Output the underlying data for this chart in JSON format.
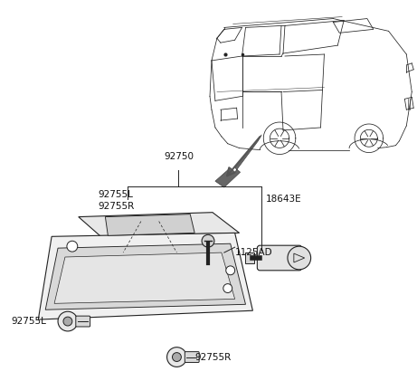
{
  "background_color": "#ffffff",
  "line_color": "#222222",
  "label_92750": "92750",
  "label_92755L_top": "92755L",
  "label_92755R_top": "92755R",
  "label_18643E": "18643E",
  "label_1125AD": "1125AD",
  "label_92755L_bot": "92755L",
  "label_92755R_bot": "92755R",
  "font_size": 7.5,
  "arrow_color": "#555555"
}
